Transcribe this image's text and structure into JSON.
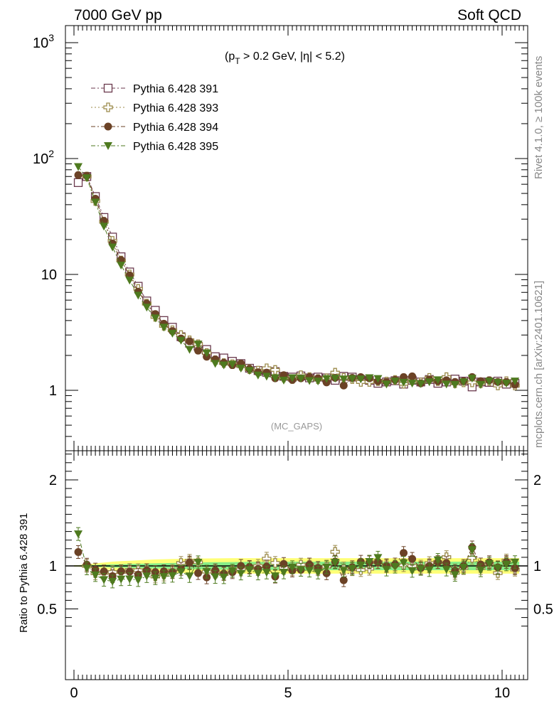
{
  "header": {
    "left": "7000 GeV pp",
    "right": "Soft QCD"
  },
  "side_text": {
    "rivet": "Rivet 4.1.0, ≥ 100k events",
    "mcplots": "mcplots.cern.ch [arXiv:2401.10621]"
  },
  "cut_label": {
    "open": "(p",
    "sub": "T",
    "rest": " > 0.2 GeV, |η| < 5.2)"
  },
  "analysis_label": "(MC_GAPS)",
  "ratio_ylabel": "Ratio to Pythia 6.428 391",
  "main_yticks": [
    {
      "value": 1,
      "label": "1"
    },
    {
      "value": 10,
      "label": "10"
    },
    {
      "value": 100,
      "base": "10",
      "exp": "2"
    },
    {
      "value": 1000,
      "base": "10",
      "exp": "3"
    }
  ],
  "ratio_yticks": [
    {
      "value": 0.5,
      "label": "0.5"
    },
    {
      "value": 1,
      "label": "1"
    },
    {
      "value": 2,
      "label": "2"
    }
  ],
  "xticks": [
    {
      "value": 0,
      "label": "0"
    },
    {
      "value": 5,
      "label": "5"
    },
    {
      "value": 10,
      "label": "10"
    }
  ],
  "chart_data": {
    "type": "scatter",
    "title": "7000 GeV pp — Soft QCD (MC_GAPS)",
    "xlabel": "",
    "ylabel": "",
    "xlim": [
      -0.2,
      10.6
    ],
    "ylim": [
      0.3,
      1300
    ],
    "yscale": "log",
    "ratio_ylim": [
      0.3,
      2.3
    ],
    "ratio_reference": "Pythia 6.428 391",
    "x": [
      0.1,
      0.3,
      0.5,
      0.7,
      0.9,
      1.1,
      1.3,
      1.5,
      1.7,
      1.9,
      2.1,
      2.3,
      2.5,
      2.7,
      2.9,
      3.1,
      3.3,
      3.5,
      3.7,
      3.9,
      4.1,
      4.3,
      4.5,
      4.7,
      4.9,
      5.1,
      5.3,
      5.5,
      5.7,
      5.9,
      6.1,
      6.3,
      6.5,
      6.7,
      6.9,
      7.1,
      7.3,
      7.5,
      7.7,
      7.9,
      8.1,
      8.3,
      8.5,
      8.7,
      8.9,
      9.1,
      9.3,
      9.5,
      9.7,
      9.9,
      10.1,
      10.3
    ],
    "series": [
      {
        "name": "Pythia 6.428 391",
        "color": "#6b3a4e",
        "marker": "open-square",
        "line": "dash-dot",
        "values": [
          62,
          70,
          47,
          31,
          21,
          14.2,
          10.5,
          7.9,
          5.9,
          4.9,
          4.0,
          3.5,
          2.9,
          2.55,
          2.4,
          2.25,
          1.95,
          1.9,
          1.78,
          1.7,
          1.55,
          1.48,
          1.43,
          1.45,
          1.32,
          1.3,
          1.33,
          1.28,
          1.3,
          1.28,
          1.22,
          1.32,
          1.3,
          1.24,
          1.22,
          1.15,
          1.18,
          1.21,
          1.13,
          1.22,
          1.18,
          1.24,
          1.15,
          1.18,
          1.25,
          1.2,
          1.07,
          1.18,
          1.17,
          1.2,
          1.13,
          1.15
        ]
      },
      {
        "name": "Pythia 6.428 393",
        "color": "#9b8a4a",
        "marker": "open-cross",
        "line": "dotted",
        "values": [
          null,
          70,
          43,
          28.5,
          19.5,
          13.2,
          10,
          7.5,
          5.6,
          4.3,
          3.6,
          3.3,
          3.0,
          2.7,
          2.5,
          2.1,
          1.82,
          1.72,
          1.68,
          1.63,
          1.52,
          1.48,
          1.55,
          1.5,
          1.29,
          1.25,
          1.35,
          1.3,
          1.25,
          1.27,
          1.42,
          1.28,
          1.25,
          1.18,
          1.18,
          1.2,
          1.19,
          1.23,
          1.14,
          1.22,
          1.17,
          1.28,
          1.2,
          1.3,
          1.15,
          1.17,
          1.17,
          1.15,
          1.2,
          1.1,
          1.2,
          1.1
        ]
      },
      {
        "name": "Pythia 6.428 394",
        "color": "#6b4226",
        "marker": "filled-circle",
        "line": "dash-dot",
        "values": [
          72,
          71,
          45,
          29,
          18.5,
          13.3,
          9.8,
          7.1,
          5.6,
          4.55,
          3.75,
          3.25,
          2.8,
          2.65,
          2.2,
          1.95,
          1.85,
          1.73,
          1.65,
          1.7,
          1.53,
          1.43,
          1.42,
          1.27,
          1.35,
          1.23,
          1.27,
          1.3,
          1.27,
          1.17,
          1.28,
          1.1,
          1.28,
          1.3,
          1.27,
          1.2,
          1.18,
          1.23,
          1.3,
          1.32,
          1.15,
          1.24,
          1.2,
          1.22,
          1.18,
          1.2,
          1.3,
          1.2,
          1.22,
          1.18,
          1.18,
          1.12
        ]
      },
      {
        "name": "Pythia 6.428 395",
        "color": "#4e7a1f",
        "marker": "filled-triangle-down",
        "line": "dash-dot",
        "values": [
          85,
          68,
          42,
          26,
          17.2,
          12,
          8.9,
          6.6,
          5.2,
          4.2,
          3.5,
          3.1,
          2.7,
          2.25,
          2.5,
          2.1,
          1.7,
          1.65,
          1.68,
          1.55,
          1.48,
          1.35,
          1.32,
          1.28,
          1.22,
          1.28,
          1.27,
          1.21,
          1.2,
          1.26,
          1.27,
          1.25,
          1.26,
          1.25,
          1.28,
          1.26,
          1.13,
          1.2,
          1.17,
          1.15,
          1.14,
          1.18,
          1.23,
          1.13,
          1.12,
          1.18,
          1.27,
          1.12,
          1.2,
          1.17,
          1.15,
          1.2
        ]
      }
    ],
    "ratio_band": {
      "name": "Pythia 6.428 391 uncertainty",
      "green_halfwidth": [
        0.005,
        0.008,
        0.012,
        0.015,
        0.018,
        0.02,
        0.022,
        0.025,
        0.028,
        0.03,
        0.032,
        0.034,
        0.036,
        0.038,
        0.04,
        0.042,
        0.043,
        0.044,
        0.045,
        0.046,
        0.047,
        0.047,
        0.048,
        0.048,
        0.049,
        0.05,
        0.05,
        0.05,
        0.05,
        0.05,
        0.05,
        0.05,
        0.05,
        0.05,
        0.05,
        0.05,
        0.05,
        0.05,
        0.05,
        0.05,
        0.05,
        0.05,
        0.05,
        0.05,
        0.05,
        0.05,
        0.05,
        0.05,
        0.05,
        0.05,
        0.05,
        0.05
      ],
      "yellow_halfwidth": [
        0.008,
        0.02,
        0.03,
        0.04,
        0.05,
        0.055,
        0.06,
        0.065,
        0.07,
        0.075,
        0.078,
        0.08,
        0.082,
        0.084,
        0.086,
        0.087,
        0.088,
        0.089,
        0.09,
        0.09,
        0.09,
        0.09,
        0.09,
        0.09,
        0.09,
        0.09,
        0.09,
        0.09,
        0.09,
        0.09,
        0.09,
        0.09,
        0.09,
        0.09,
        0.09,
        0.09,
        0.09,
        0.09,
        0.09,
        0.09,
        0.09,
        0.09,
        0.09,
        0.09,
        0.09,
        0.09,
        0.09,
        0.09,
        0.09,
        0.09,
        0.09,
        0.09
      ]
    },
    "legend_position": "top-left"
  }
}
